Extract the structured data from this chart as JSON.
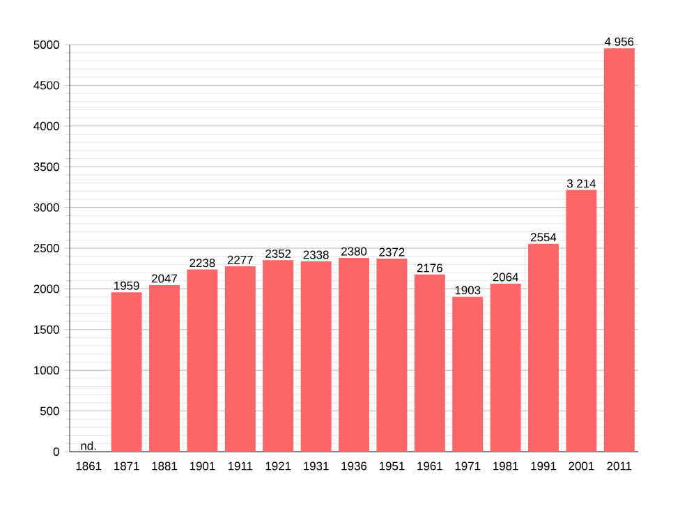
{
  "chart_data": {
    "type": "bar",
    "categories": [
      "1861",
      "1871",
      "1881",
      "1901",
      "1911",
      "1921",
      "1931",
      "1936",
      "1951",
      "1961",
      "1971",
      "1981",
      "1991",
      "2001",
      "2011"
    ],
    "values": [
      null,
      1959,
      2047,
      2238,
      2277,
      2352,
      2338,
      2380,
      2372,
      2176,
      1903,
      2064,
      2554,
      3214,
      4956
    ],
    "value_labels": [
      "nd.",
      "1959",
      "2047",
      "2238",
      "2277",
      "2352",
      "2338",
      "2380",
      "2372",
      "2176",
      "1903",
      "2064",
      "2554",
      "3 214",
      "4 956"
    ],
    "color": "#ff6666",
    "ylim": [
      0,
      5000
    ],
    "yticks": [
      0,
      500,
      1000,
      1500,
      2000,
      2500,
      3000,
      3500,
      4000,
      4500,
      5000
    ],
    "grid": "y"
  }
}
